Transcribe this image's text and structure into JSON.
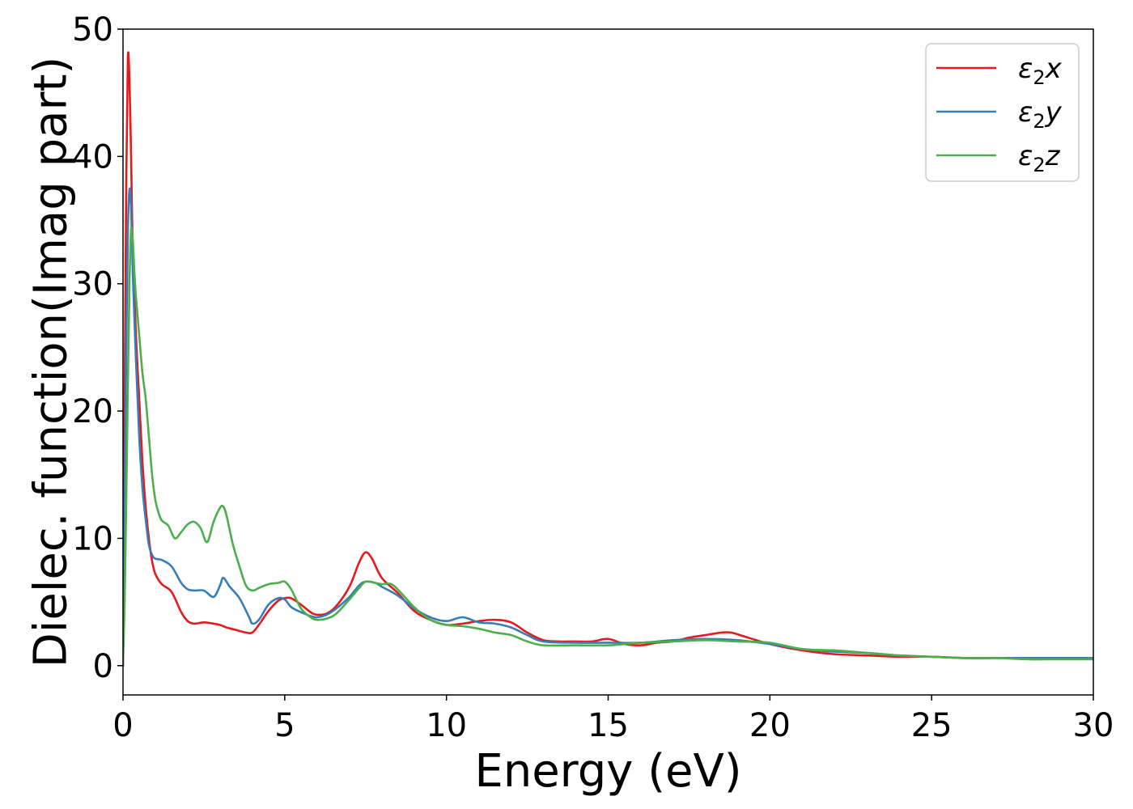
{
  "chart_data": {
    "type": "line",
    "title": "",
    "xlabel": "Energy (eV)",
    "ylabel": "Dielec. function(Imag part)",
    "xlim": [
      0,
      30
    ],
    "ylim": [
      -2.3,
      50
    ],
    "xticks": [
      0,
      5,
      10,
      15,
      20,
      25,
      30
    ],
    "yticks": [
      0,
      10,
      20,
      30,
      40,
      50
    ],
    "grid": false,
    "legend_position": "top-right",
    "series": [
      {
        "name": "ε₂x",
        "legend_base": "ε",
        "legend_sub": "2",
        "legend_var": "x",
        "color": "#e41a1c",
        "x": [
          0,
          0.05,
          0.1,
          0.15,
          0.2,
          0.25,
          0.3,
          0.4,
          0.5,
          0.6,
          0.7,
          0.8,
          0.9,
          1.0,
          1.2,
          1.5,
          1.8,
          2.0,
          2.2,
          2.5,
          2.8,
          3.0,
          3.2,
          3.5,
          3.8,
          4.0,
          4.2,
          4.5,
          4.8,
          5.0,
          5.2,
          5.5,
          5.8,
          6.0,
          6.3,
          6.6,
          7.0,
          7.3,
          7.5,
          7.7,
          8.0,
          8.5,
          9.0,
          9.5,
          10.0,
          10.5,
          11.0,
          11.5,
          12.0,
          12.5,
          13.0,
          13.5,
          14.0,
          14.5,
          15.0,
          15.5,
          16.0,
          16.5,
          17.0,
          17.5,
          18.0,
          18.5,
          18.8,
          19.2,
          20.0,
          21.0,
          22.0,
          23.0,
          24.0,
          25.0,
          26.0,
          27.0,
          28.0,
          29.0,
          30.0
        ],
        "values": [
          0,
          20,
          38,
          47.7,
          46,
          40,
          33,
          26,
          21,
          16,
          12.5,
          10,
          8.2,
          7.2,
          6.4,
          5.8,
          4.2,
          3.5,
          3.3,
          3.4,
          3.3,
          3.2,
          3.0,
          2.8,
          2.6,
          2.6,
          3.2,
          4.3,
          5.1,
          5.3,
          5.3,
          4.8,
          4.2,
          4.0,
          4.1,
          4.7,
          6.2,
          8.1,
          8.9,
          8.4,
          6.9,
          5.7,
          4.3,
          3.6,
          3.2,
          3.3,
          3.5,
          3.6,
          3.4,
          2.6,
          2.0,
          1.9,
          1.9,
          1.9,
          2.1,
          1.7,
          1.6,
          1.8,
          1.9,
          2.2,
          2.4,
          2.6,
          2.6,
          2.3,
          1.7,
          1.2,
          0.9,
          0.8,
          0.7,
          0.7,
          0.6,
          0.6,
          0.6,
          0.6,
          0.6
        ]
      },
      {
        "name": "ε₂y",
        "legend_base": "ε",
        "legend_sub": "2",
        "legend_var": "y",
        "color": "#377eb8",
        "x": [
          0,
          0.05,
          0.1,
          0.15,
          0.2,
          0.25,
          0.3,
          0.4,
          0.5,
          0.6,
          0.7,
          0.8,
          0.9,
          1.0,
          1.2,
          1.5,
          1.8,
          2.0,
          2.2,
          2.5,
          2.8,
          3.0,
          3.1,
          3.3,
          3.6,
          3.9,
          4.0,
          4.2,
          4.5,
          4.8,
          5.0,
          5.2,
          5.5,
          5.8,
          6.0,
          6.3,
          6.6,
          7.0,
          7.3,
          7.5,
          7.8,
          8.0,
          8.5,
          9.0,
          9.5,
          10.0,
          10.5,
          11.0,
          11.5,
          12.0,
          12.5,
          13.0,
          14.0,
          15.0,
          16.0,
          17.0,
          18.0,
          19.0,
          20.0,
          21.0,
          22.0,
          23.0,
          24.0,
          25.0,
          26.0,
          27.0,
          28.0,
          29.0,
          30.0
        ],
        "values": [
          0,
          12,
          25,
          34,
          37.4,
          36,
          31,
          24,
          18,
          14,
          11.5,
          9.5,
          8.7,
          8.4,
          8.3,
          7.8,
          6.5,
          6.0,
          5.9,
          5.9,
          5.4,
          6.3,
          6.9,
          6.2,
          5.3,
          3.8,
          3.3,
          3.6,
          4.8,
          5.3,
          5.2,
          4.6,
          4.2,
          3.9,
          3.8,
          4.0,
          4.5,
          5.4,
          6.3,
          6.6,
          6.5,
          6.2,
          5.5,
          4.5,
          3.8,
          3.5,
          3.8,
          3.4,
          3.3,
          3.0,
          2.4,
          1.9,
          1.8,
          1.8,
          1.8,
          2.0,
          2.1,
          2.0,
          1.7,
          1.3,
          1.1,
          1.0,
          0.8,
          0.7,
          0.6,
          0.6,
          0.6,
          0.6,
          0.6
        ]
      },
      {
        "name": "ε₂z",
        "legend_base": "ε",
        "legend_sub": "2",
        "legend_var": "z",
        "color": "#4daf4a",
        "x": [
          0,
          0.05,
          0.1,
          0.15,
          0.2,
          0.25,
          0.3,
          0.35,
          0.4,
          0.5,
          0.6,
          0.7,
          0.8,
          0.9,
          1.0,
          1.1,
          1.2,
          1.4,
          1.6,
          1.8,
          2.0,
          2.2,
          2.4,
          2.6,
          2.8,
          3.0,
          3.1,
          3.2,
          3.4,
          3.6,
          3.8,
          4.0,
          4.2,
          4.5,
          4.8,
          5.0,
          5.2,
          5.5,
          5.8,
          6.0,
          6.3,
          6.6,
          7.0,
          7.3,
          7.5,
          7.8,
          8.0,
          8.3,
          8.6,
          9.0,
          9.5,
          10.0,
          10.5,
          11.0,
          11.5,
          12.0,
          12.5,
          13.0,
          14.0,
          15.0,
          16.0,
          17.0,
          18.0,
          19.0,
          20.0,
          21.0,
          22.0,
          23.0,
          24.0,
          25.0,
          26.0,
          27.0,
          28.0,
          29.0,
          30.0
        ],
        "values": [
          0,
          5,
          13,
          22,
          30,
          34.2,
          33.5,
          31,
          29,
          26,
          23,
          21,
          18,
          15,
          13,
          12,
          11.4,
          11,
          10,
          10.5,
          11.1,
          11.3,
          10.8,
          9.7,
          11.3,
          12.4,
          12.5,
          11.8,
          9.5,
          7.8,
          6.3,
          5.9,
          6.1,
          6.4,
          6.5,
          6.6,
          6.0,
          4.5,
          3.8,
          3.6,
          3.7,
          4.1,
          5.2,
          6.1,
          6.6,
          6.5,
          6.4,
          6.4,
          5.7,
          4.6,
          3.6,
          3.2,
          3.1,
          2.9,
          2.6,
          2.4,
          1.9,
          1.6,
          1.6,
          1.6,
          1.8,
          1.9,
          2.0,
          1.9,
          1.8,
          1.3,
          1.2,
          1.0,
          0.8,
          0.7,
          0.6,
          0.6,
          0.5,
          0.5,
          0.5
        ]
      }
    ]
  }
}
